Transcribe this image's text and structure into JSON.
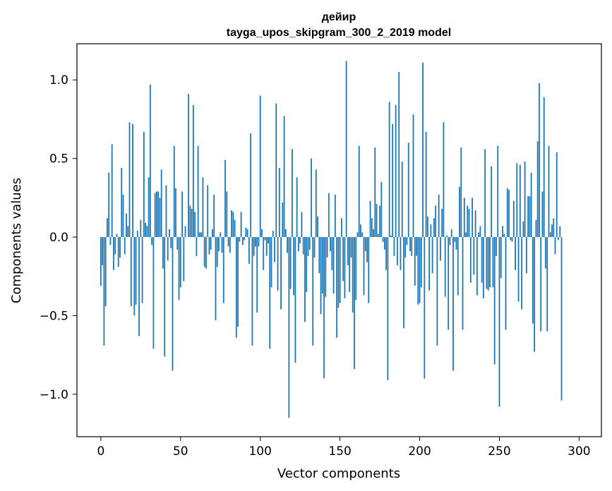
{
  "chart_data": {
    "type": "bar",
    "title": "дейир",
    "subtitle": "tayga_upos_skipgram_300_2_2019 model",
    "xlabel": "Vector components",
    "ylabel": "Components values",
    "xlim": [
      -15,
      314
    ],
    "ylim": [
      -1.27,
      1.23
    ],
    "xticks": [
      0,
      50,
      100,
      150,
      200,
      250,
      300
    ],
    "xtick_labels": [
      "0",
      "50",
      "100",
      "150",
      "200",
      "250",
      "300"
    ],
    "yticks": [
      -1.0,
      -0.5,
      0.0,
      0.5,
      1.0
    ],
    "ytick_labels": [
      "−1.0",
      "−0.5",
      "0.0",
      "0.5",
      "1.0"
    ],
    "bar_color": "#1f77b4",
    "grid": false,
    "legend": false,
    "values": [
      -0.31,
      -0.18,
      -0.69,
      -0.44,
      0.12,
      0.41,
      -0.05,
      0.59,
      -0.21,
      -0.11,
      0.02,
      -0.19,
      -0.13,
      0.44,
      0.27,
      -0.11,
      0.15,
      0.07,
      0.73,
      -0.44,
      0.72,
      -0.5,
      -0.43,
      0.04,
      -0.63,
      0.11,
      -0.42,
      0.67,
      0.09,
      0.07,
      0.38,
      0.97,
      -0.05,
      -0.71,
      0.28,
      0.29,
      0.29,
      0.25,
      0.43,
      -0.2,
      -0.76,
      0.33,
      -0.15,
      0.05,
      -0.07,
      -0.85,
      0.58,
      0.31,
      -0.08,
      -0.4,
      -0.32,
      0.29,
      -0.28,
      0.07,
      0.0,
      0.91,
      0.2,
      0.18,
      0.84,
      0.16,
      -0.12,
      0.58,
      0.03,
      0.03,
      0.38,
      -0.19,
      -0.2,
      0.33,
      -0.11,
      -0.08,
      0.05,
      0.27,
      -0.53,
      -0.19,
      -0.09,
      0.03,
      -0.1,
      -0.42,
      0.49,
      0.29,
      -0.06,
      -0.1,
      0.17,
      0.16,
      0.11,
      -0.64,
      -0.57,
      -0.03,
      0.16,
      -0.05,
      -0.02,
      0.06,
      0.05,
      -0.17,
      0.66,
      -0.69,
      -0.12,
      -0.06,
      -0.48,
      -0.06,
      0.9,
      0.05,
      -0.21,
      -0.02,
      -0.12,
      -0.04,
      -0.71,
      -0.32,
      0.04,
      -0.16,
      0.85,
      -0.34,
      0.44,
      -0.46,
      0.22,
      0.77,
      0.05,
      -0.1,
      -1.15,
      -0.33,
      0.56,
      -0.37,
      -0.8,
      0.38,
      -0.09,
      -0.04,
      0.16,
      -0.11,
      -0.54,
      -0.35,
      -0.12,
      -0.08,
      0.5,
      -0.69,
      -0.13,
      0.43,
      0.13,
      -0.23,
      -0.49,
      -0.36,
      -0.9,
      -0.38,
      -0.13,
      0.28,
      -0.09,
      -0.21,
      -0.36,
      0.27,
      -0.64,
      -0.45,
      -0.42,
      0.12,
      -0.28,
      -0.39,
      1.12,
      -0.18,
      -0.35,
      -0.13,
      -0.48,
      -0.84,
      -0.4,
      0.03,
      0.58,
      0.08,
      0.03,
      -0.37,
      -0.09,
      -0.16,
      -0.42,
      0.23,
      0.12,
      0.05,
      0.57,
      0.21,
      0.02,
      0.2,
      0.35,
      -0.03,
      -0.08,
      -0.21,
      -0.91,
      0.86,
      0.01,
      0.72,
      -0.12,
      0.84,
      -0.18,
      1.05,
      -0.21,
      0.48,
      -0.58,
      -0.13,
      -0.05,
      0.6,
      -0.09,
      -0.12,
      0.78,
      -0.31,
      -0.12,
      -0.43,
      -0.42,
      -0.32,
      1.11,
      -0.9,
      0.67,
      0.13,
      -0.34,
      0.08,
      -0.23,
      0.12,
      0.2,
      -0.69,
      0.27,
      -0.15,
      0.18,
      0.73,
      -0.38,
      0.01,
      -0.59,
      -0.05,
      0.05,
      -0.85,
      -0.03,
      -0.08,
      -0.37,
      0.32,
      0.57,
      -0.59,
      0.25,
      0.03,
      0.2,
      0.18,
      -0.29,
      0.25,
      -0.24,
      0.17,
      -0.37,
      0.03,
      0.07,
      -0.29,
      -0.39,
      0.56,
      -0.33,
      -0.34,
      -0.32,
      0.45,
      -0.32,
      -0.81,
      -0.12,
      0.58,
      -1.08,
      -0.26,
      0.07,
      0.02,
      -0.59,
      0.31,
      0.3,
      -0.02,
      -0.03,
      0.23,
      -0.21,
      0.47,
      -0.41,
      0.46,
      -0.46,
      0.1,
      0.48,
      -0.23,
      0.26,
      0.26,
      0.41,
      -0.55,
      -0.73,
      0.11,
      0.61,
      0.98,
      -0.6,
      0.29,
      0.89,
      -0.2,
      -0.6,
      0.58,
      0.03,
      0.08,
      0.12,
      -0.11,
      0.54,
      -0.02,
      0.07,
      -1.04
    ]
  }
}
